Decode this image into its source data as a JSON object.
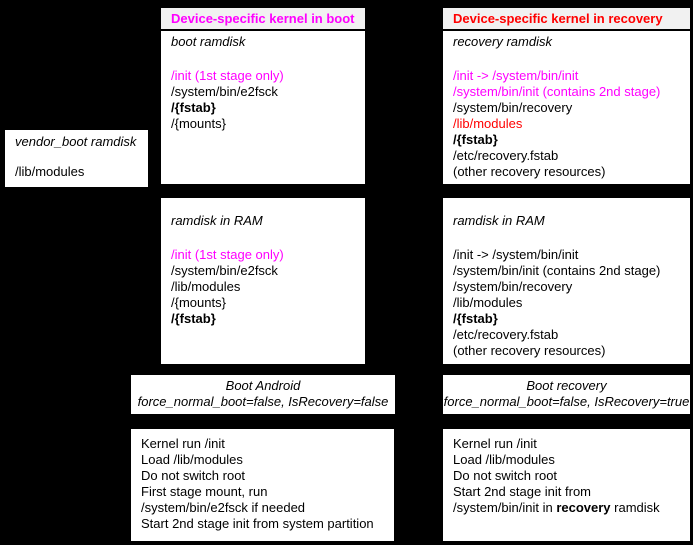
{
  "diagram": {
    "background": "#000000",
    "box_background": "#ffffff",
    "header_background": "#f1f1f1",
    "accent_colors": {
      "magenta": "#ff00ff",
      "red": "#ff0000",
      "text": "#000000"
    }
  },
  "vendor_box": {
    "title": "vendor_boot ramdisk",
    "line": "/lib/modules"
  },
  "boot_column": {
    "header": "Device-specific kernel in boot",
    "ramdisk_box": {
      "title": "boot ramdisk",
      "lines": [
        {
          "text": "/init (1st stage only)",
          "color": "magenta"
        },
        {
          "text": "/system/bin/e2fsck"
        },
        {
          "text": "/{fstab}",
          "bold": true
        },
        {
          "text": "/{mounts}"
        }
      ]
    },
    "ram_box": {
      "title": "ramdisk in RAM",
      "lines": [
        {
          "text": "/init (1st stage only)",
          "color": "magenta"
        },
        {
          "text": "/system/bin/e2fsck"
        },
        {
          "text": "/lib/modules"
        },
        {
          "text": "/{mounts}"
        },
        {
          "text": "/{fstab}",
          "bold": true
        }
      ]
    },
    "action_box": {
      "line1": "Boot Android",
      "line2": "force_normal_boot=false, IsRecovery=false"
    },
    "kernel_box": {
      "lines": [
        "Kernel run /init",
        "Load /lib/modules",
        "Do not switch root",
        "First stage mount, run",
        "/system/bin/e2fsck if needed",
        "Start 2nd stage init from system partition"
      ]
    }
  },
  "recovery_column": {
    "header": "Device-specific kernel in recovery",
    "ramdisk_box": {
      "title": "recovery ramdisk",
      "lines": [
        {
          "text": "/init -> /system/bin/init",
          "color": "magenta"
        },
        {
          "text": "/system/bin/init (contains 2nd stage)",
          "color": "magenta"
        },
        {
          "text": "/system/bin/recovery"
        },
        {
          "text": "/lib/modules",
          "color": "red"
        },
        {
          "text": "/{fstab}",
          "bold": true
        },
        {
          "text": "/etc/recovery.fstab"
        },
        {
          "text": "(other recovery resources)"
        }
      ]
    },
    "ram_box": {
      "title": "ramdisk in RAM",
      "lines": [
        {
          "text": "/init -> /system/bin/init"
        },
        {
          "text": "/system/bin/init (contains 2nd stage)"
        },
        {
          "text": "/system/bin/recovery"
        },
        {
          "text": "/lib/modules"
        },
        {
          "text": "/{fstab}",
          "bold": true
        },
        {
          "text": "/etc/recovery.fstab"
        },
        {
          "text": "(other recovery resources)"
        }
      ]
    },
    "action_box": {
      "line1": "Boot recovery",
      "line2": "force_normal_boot=false, IsRecovery=true"
    },
    "kernel_box": {
      "lines": [
        "Kernel run /init",
        "Load /lib/modules",
        "Do not switch root",
        "Start 2nd stage init from"
      ],
      "last_line": {
        "pre": "/system/bin/init in ",
        "bold": "recovery",
        "post": " ramdisk"
      }
    }
  }
}
